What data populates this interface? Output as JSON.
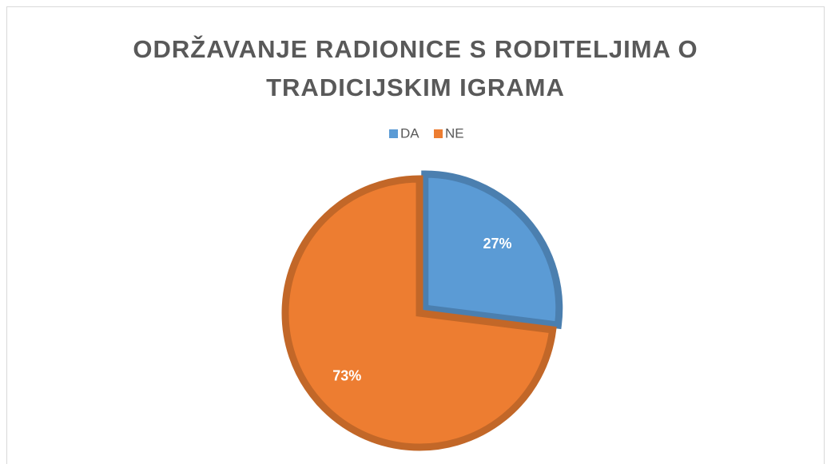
{
  "chart_data": {
    "type": "pie",
    "title": "ODRŽAVANJE RADIONICE S RODITELJIMA O TRADICIJSKIM IGRAMA",
    "categories": [
      "DA",
      "NE"
    ],
    "values": [
      27,
      73
    ],
    "value_labels": [
      "27%",
      "73%"
    ],
    "colors": [
      "#5b9bd5",
      "#ed7d31"
    ],
    "legend": "top"
  }
}
